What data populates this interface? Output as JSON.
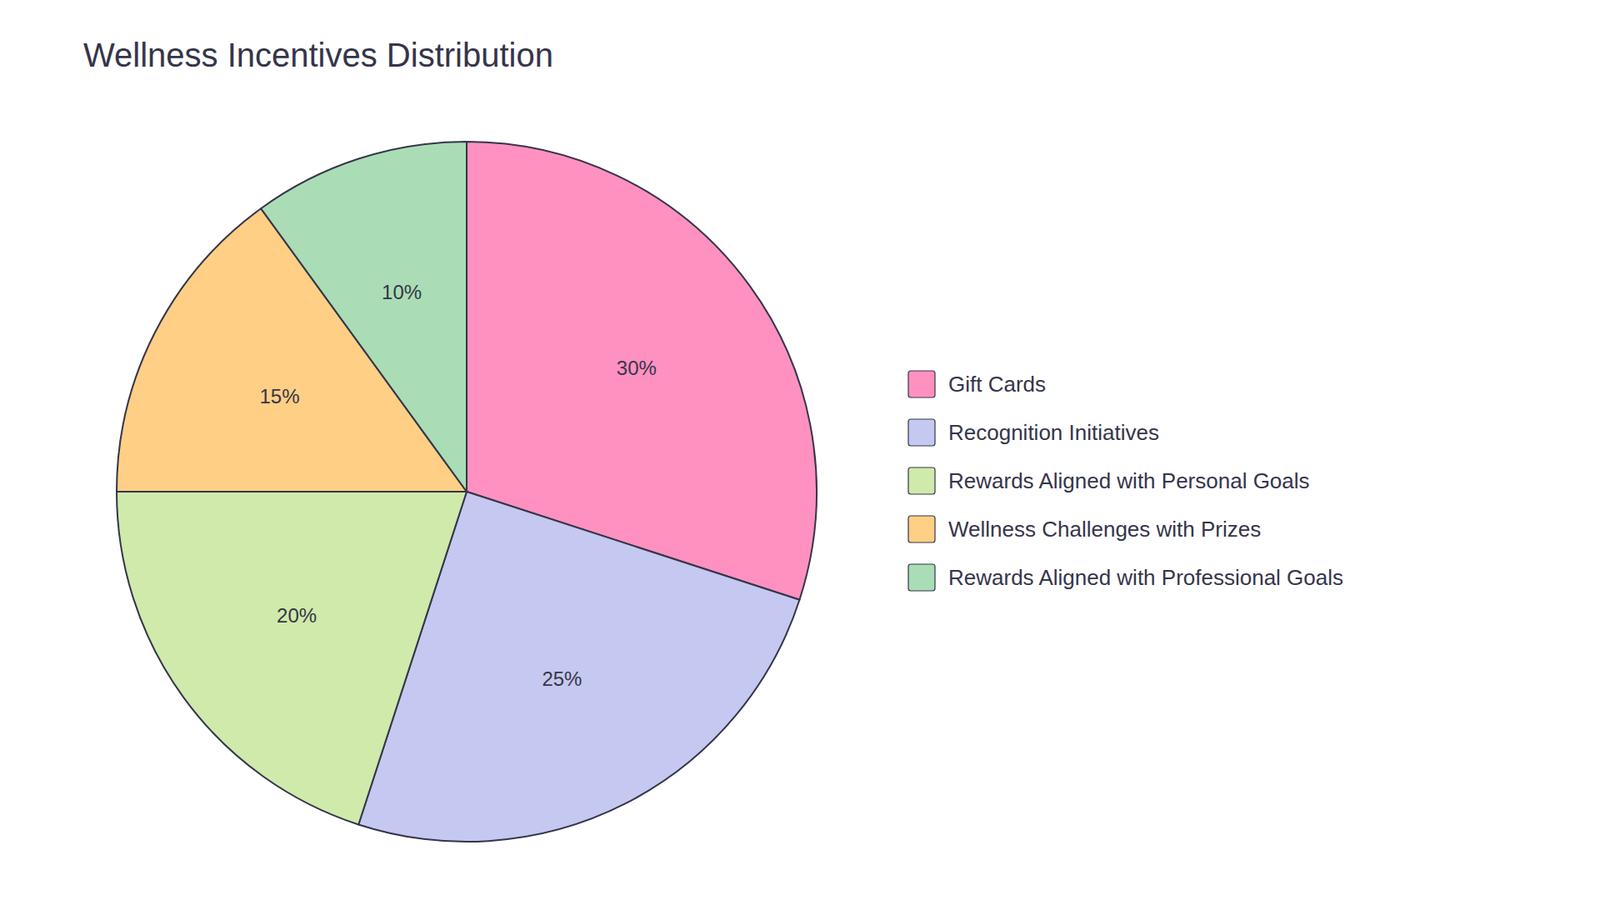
{
  "chart_data": {
    "type": "pie",
    "title": "Wellness Incentives Distribution",
    "categories": [
      "Gift Cards",
      "Recognition Initiatives",
      "Rewards Aligned with Personal Goals",
      "Wellness Challenges with Prizes",
      "Rewards Aligned with Professional Goals"
    ],
    "values": [
      30,
      25,
      20,
      15,
      10
    ],
    "value_labels": [
      "30%",
      "25%",
      "20%",
      "15%",
      "10%"
    ],
    "colors": [
      "#FF91C1",
      "#C5C8F0",
      "#CFEAAA",
      "#FFCF85",
      "#AADDB5"
    ],
    "data_labels": true,
    "legend": "right"
  }
}
